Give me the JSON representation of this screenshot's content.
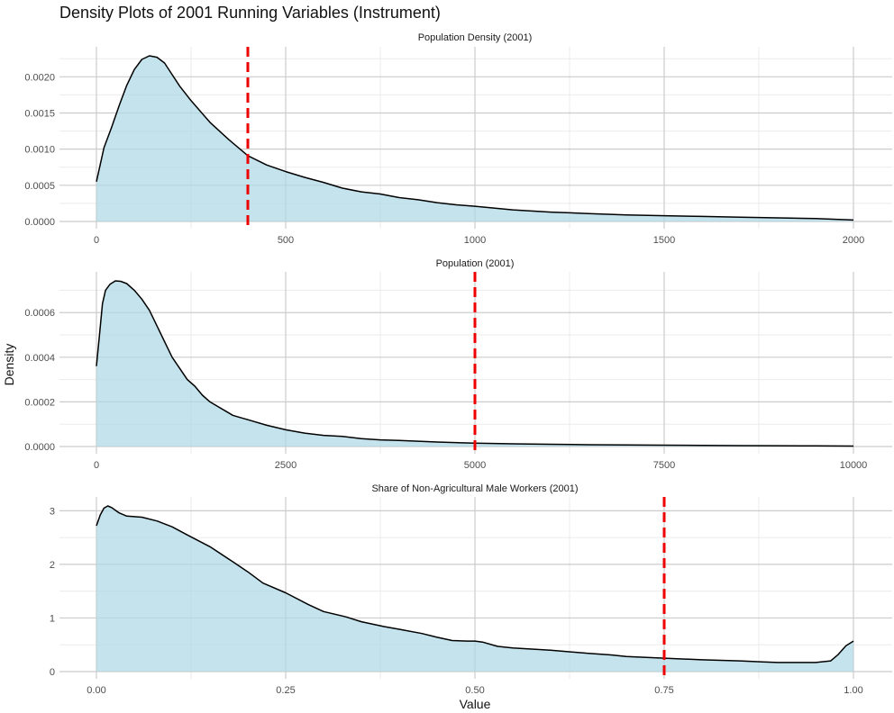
{
  "title": "Density Plots of 2001 Running Variables (Instrument)",
  "xlabel": "Value",
  "ylabel": "Density",
  "colors": {
    "fill": "#add8e6",
    "line": "#000000",
    "cutoff": "#ee0000",
    "grid": "#cccccc"
  },
  "chart_data": [
    {
      "type": "area",
      "title": "Population Density (2001)",
      "xlim": [
        0,
        2000
      ],
      "ylim": [
        0,
        0.00229
      ],
      "x_ticks": [
        0,
        500,
        1000,
        1500,
        2000
      ],
      "x_tick_labels": [
        "0",
        "500",
        "1000",
        "1500",
        "2000"
      ],
      "y_ticks": [
        0,
        0.0005,
        0.001,
        0.0015,
        0.002
      ],
      "y_tick_labels": [
        "0.0000",
        "0.0005",
        "0.0010",
        "0.0015",
        "0.0020"
      ],
      "cutoff": 400,
      "points": [
        [
          0,
          0.00055
        ],
        [
          20,
          0.00102
        ],
        [
          40,
          0.0013
        ],
        [
          60,
          0.0016
        ],
        [
          80,
          0.00188
        ],
        [
          100,
          0.0021
        ],
        [
          120,
          0.00224
        ],
        [
          140,
          0.00229
        ],
        [
          160,
          0.00227
        ],
        [
          180,
          0.00219
        ],
        [
          200,
          0.00203
        ],
        [
          220,
          0.00187
        ],
        [
          250,
          0.00167
        ],
        [
          300,
          0.00137
        ],
        [
          350,
          0.00113
        ],
        [
          400,
          0.00091
        ],
        [
          450,
          0.00078
        ],
        [
          500,
          0.00069
        ],
        [
          550,
          0.00061
        ],
        [
          600,
          0.00054
        ],
        [
          650,
          0.00046
        ],
        [
          700,
          0.00041
        ],
        [
          750,
          0.00038
        ],
        [
          800,
          0.00033
        ],
        [
          850,
          0.0003
        ],
        [
          900,
          0.00026
        ],
        [
          950,
          0.00023
        ],
        [
          1000,
          0.00021
        ],
        [
          1100,
          0.00016
        ],
        [
          1200,
          0.00013
        ],
        [
          1300,
          0.00011
        ],
        [
          1400,
          9e-05
        ],
        [
          1500,
          8e-05
        ],
        [
          1600,
          7e-05
        ],
        [
          1700,
          6e-05
        ],
        [
          1800,
          5e-05
        ],
        [
          1900,
          4e-05
        ],
        [
          2000,
          2e-05
        ]
      ]
    },
    {
      "type": "area",
      "title": "Population (2001)",
      "xlim": [
        0,
        10000
      ],
      "ylim": [
        0,
        0.000742
      ],
      "x_ticks": [
        0,
        2500,
        5000,
        7500,
        10000
      ],
      "x_tick_labels": [
        "0",
        "2500",
        "5000",
        "7500",
        "10000"
      ],
      "y_ticks": [
        0,
        0.0002,
        0.0004,
        0.0006
      ],
      "y_tick_labels": [
        "0.0000",
        "0.0002",
        "0.0004",
        "0.0006"
      ],
      "cutoff": 5000,
      "points": [
        [
          0,
          0.00036
        ],
        [
          40,
          0.0005
        ],
        [
          80,
          0.00064
        ],
        [
          120,
          0.0007
        ],
        [
          180,
          0.000727
        ],
        [
          250,
          0.000742
        ],
        [
          320,
          0.00074
        ],
        [
          400,
          0.00073
        ],
        [
          500,
          0.0007
        ],
        [
          600,
          0.00066
        ],
        [
          700,
          0.00061
        ],
        [
          800,
          0.00054
        ],
        [
          900,
          0.00047
        ],
        [
          1000,
          0.0004
        ],
        [
          1100,
          0.00035
        ],
        [
          1200,
          0.0003
        ],
        [
          1300,
          0.00027
        ],
        [
          1400,
          0.00023
        ],
        [
          1500,
          0.0002
        ],
        [
          1600,
          0.00018
        ],
        [
          1700,
          0.00016
        ],
        [
          1800,
          0.00014
        ],
        [
          1900,
          0.00013
        ],
        [
          2000,
          0.00012
        ],
        [
          2250,
          9.5e-05
        ],
        [
          2500,
          7.5e-05
        ],
        [
          2750,
          6e-05
        ],
        [
          3000,
          5e-05
        ],
        [
          3250,
          4.5e-05
        ],
        [
          3500,
          3.5e-05
        ],
        [
          3750,
          3e-05
        ],
        [
          4000,
          2.7e-05
        ],
        [
          4500,
          2e-05
        ],
        [
          5000,
          1.5e-05
        ],
        [
          5500,
          1.2e-05
        ],
        [
          6000,
          1e-05
        ],
        [
          6500,
          8e-06
        ],
        [
          7000,
          7e-06
        ],
        [
          7500,
          6e-06
        ],
        [
          8000,
          5e-06
        ],
        [
          8500,
          4e-06
        ],
        [
          9000,
          3.5e-06
        ],
        [
          9500,
          3e-06
        ],
        [
          10000,
          2e-06
        ]
      ]
    },
    {
      "type": "area",
      "title": "Share of Non-Agricultural Male Workers (2001)",
      "xlim": [
        0,
        1
      ],
      "ylim": [
        0,
        3.09
      ],
      "x_ticks": [
        0,
        0.25,
        0.5,
        0.75,
        1
      ],
      "x_tick_labels": [
        "0.00",
        "0.25",
        "0.50",
        "0.75",
        "1.00"
      ],
      "y_ticks": [
        0,
        1,
        2,
        3
      ],
      "y_tick_labels": [
        "0",
        "1",
        "2",
        "3"
      ],
      "cutoff": 0.75,
      "points": [
        [
          0,
          2.72
        ],
        [
          0.005,
          2.92
        ],
        [
          0.01,
          3.05
        ],
        [
          0.015,
          3.09
        ],
        [
          0.02,
          3.06
        ],
        [
          0.03,
          2.96
        ],
        [
          0.04,
          2.9
        ],
        [
          0.05,
          2.89
        ],
        [
          0.06,
          2.88
        ],
        [
          0.08,
          2.81
        ],
        [
          0.1,
          2.7
        ],
        [
          0.12,
          2.55
        ],
        [
          0.15,
          2.33
        ],
        [
          0.18,
          2.05
        ],
        [
          0.2,
          1.86
        ],
        [
          0.22,
          1.65
        ],
        [
          0.25,
          1.47
        ],
        [
          0.28,
          1.25
        ],
        [
          0.3,
          1.12
        ],
        [
          0.33,
          1.02
        ],
        [
          0.35,
          0.93
        ],
        [
          0.38,
          0.84
        ],
        [
          0.4,
          0.79
        ],
        [
          0.43,
          0.71
        ],
        [
          0.45,
          0.64
        ],
        [
          0.47,
          0.58
        ],
        [
          0.49,
          0.57
        ],
        [
          0.5,
          0.57
        ],
        [
          0.51,
          0.55
        ],
        [
          0.53,
          0.47
        ],
        [
          0.55,
          0.44
        ],
        [
          0.6,
          0.4
        ],
        [
          0.65,
          0.34
        ],
        [
          0.68,
          0.31
        ],
        [
          0.7,
          0.28
        ],
        [
          0.75,
          0.25
        ],
        [
          0.8,
          0.22
        ],
        [
          0.85,
          0.2
        ],
        [
          0.88,
          0.18
        ],
        [
          0.9,
          0.17
        ],
        [
          0.93,
          0.17
        ],
        [
          0.95,
          0.17
        ],
        [
          0.97,
          0.2
        ],
        [
          0.98,
          0.32
        ],
        [
          0.99,
          0.48
        ],
        [
          1.0,
          0.57
        ]
      ]
    }
  ]
}
